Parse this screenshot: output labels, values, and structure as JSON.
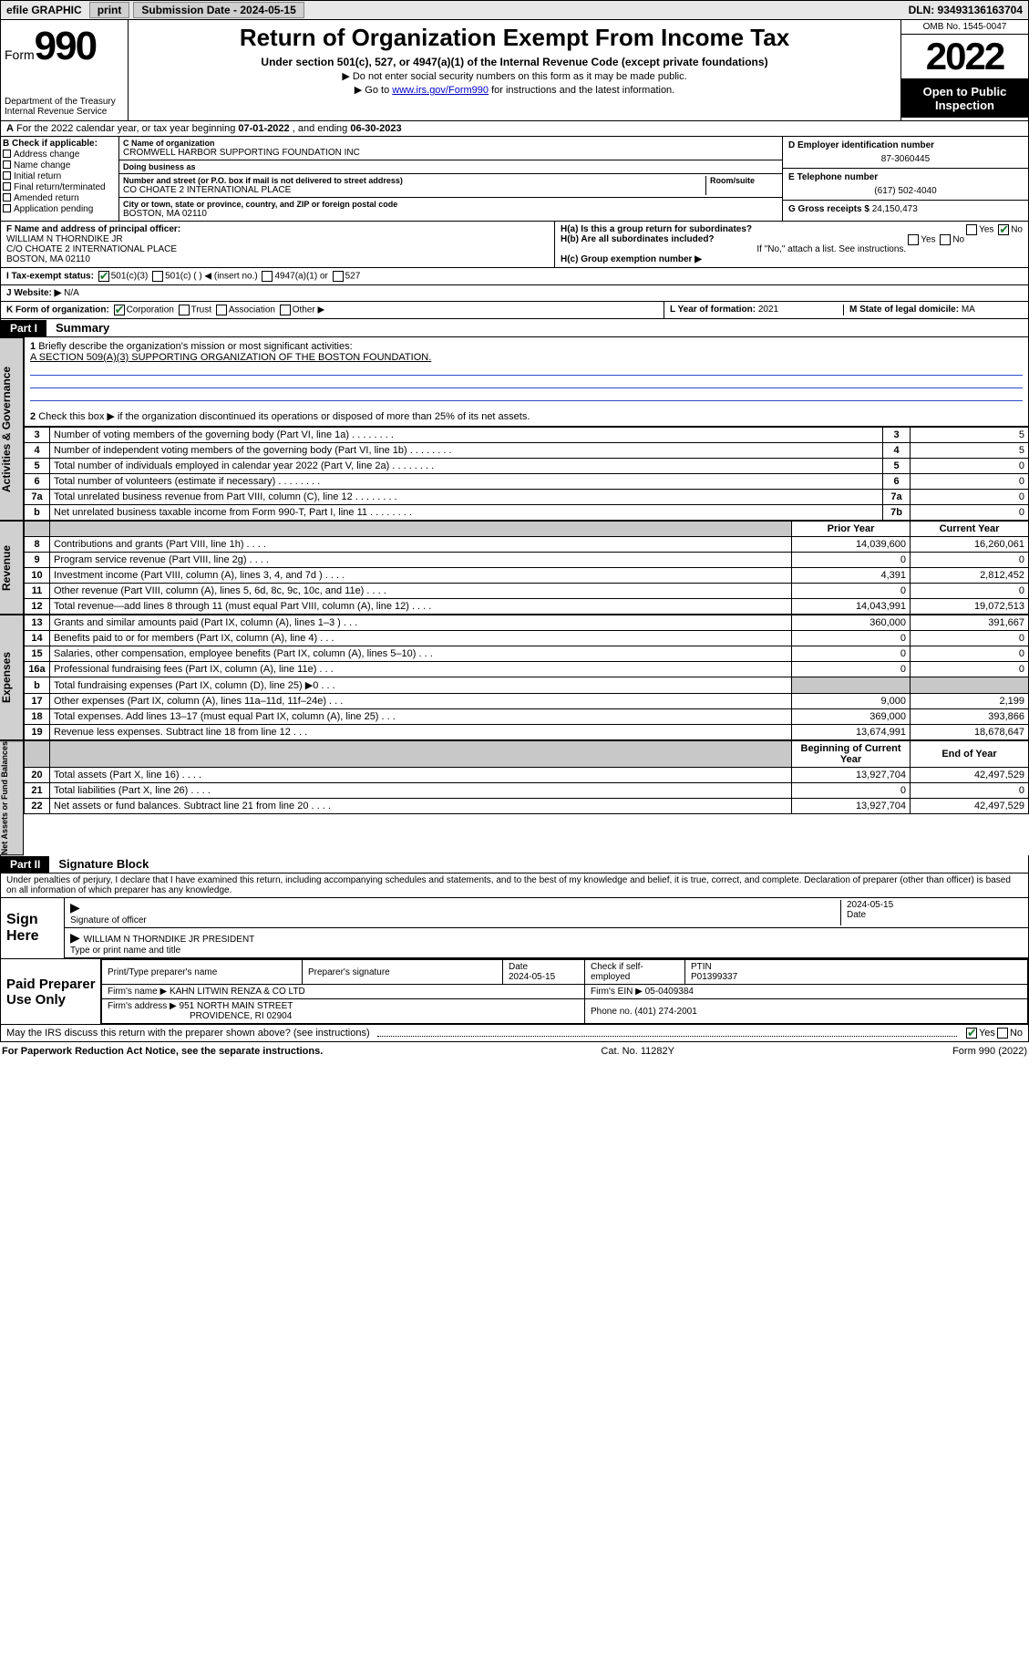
{
  "topbar": {
    "efile": "efile GRAPHIC",
    "print": "print",
    "sub_label": "Submission Date - 2024-05-15",
    "dln_label": "DLN: 93493136163704"
  },
  "header": {
    "form_word": "Form",
    "form_num": "990",
    "dept": "Department of the Treasury",
    "irs": "Internal Revenue Service",
    "title": "Return of Organization Exempt From Income Tax",
    "subtitle": "Under section 501(c), 527, or 4947(a)(1) of the Internal Revenue Code (except private foundations)",
    "note1": "Do not enter social security numbers on this form as it may be made public.",
    "note2_pre": "Go to ",
    "note2_link": "www.irs.gov/Form990",
    "note2_post": " for instructions and the latest information.",
    "omb": "OMB No. 1545-0047",
    "year": "2022",
    "open": "Open to Public Inspection"
  },
  "lineA": {
    "label": "A",
    "text_pre": "For the 2022 calendar year, or tax year beginning ",
    "begin": "07-01-2022",
    "mid": " , and ending ",
    "end": "06-30-2023"
  },
  "boxB": {
    "header": "B Check if applicable:",
    "items": [
      "Address change",
      "Name change",
      "Initial return",
      "Final return/terminated",
      "Amended return",
      "Application pending"
    ]
  },
  "boxC": {
    "name_label": "C Name of organization",
    "name": "CROMWELL HARBOR SUPPORTING FOUNDATION INC",
    "dba_label": "Doing business as",
    "dba": "",
    "street_label": "Number and street (or P.O. box if mail is not delivered to street address)",
    "room_label": "Room/suite",
    "street": "CO CHOATE 2 INTERNATIONAL PLACE",
    "city_label": "City or town, state or province, country, and ZIP or foreign postal code",
    "city": "BOSTON, MA  02110"
  },
  "boxD": {
    "label": "D Employer identification number",
    "value": "87-3060445"
  },
  "boxE": {
    "label": "E Telephone number",
    "value": "(617) 502-4040"
  },
  "boxG": {
    "label": "G Gross receipts $",
    "value": "24,150,473"
  },
  "boxF": {
    "label": "F Name and address of principal officer:",
    "name": "WILLIAM N THORNDIKE JR",
    "addr1": "C/O CHOATE 2 INTERNATIONAL PLACE",
    "addr2": "BOSTON, MA  02110"
  },
  "boxH": {
    "a_label": "H(a)  Is this a group return for subordinates?",
    "b_label": "H(b)  Are all subordinates included?",
    "note": "If \"No,\" attach a list. See instructions.",
    "c_label": "H(c)  Group exemption number ▶"
  },
  "boxI": {
    "label": "I  Tax-exempt status:",
    "opts": [
      "501(c)(3)",
      "501(c) (   ) ◀ (insert no.)",
      "4947(a)(1) or",
      "527"
    ]
  },
  "boxJ": {
    "label": "J  Website: ▶",
    "value": "N/A"
  },
  "boxK": {
    "label": "K Form of organization:",
    "opts": [
      "Corporation",
      "Trust",
      "Association",
      "Other ▶"
    ]
  },
  "boxL": {
    "label": "L Year of formation:",
    "value": "2021"
  },
  "boxM": {
    "label": "M State of legal domicile:",
    "value": "MA"
  },
  "part1": {
    "bar": "Part I",
    "title": "Summary",
    "q1_label": "1",
    "q1_text": "Briefly describe the organization's mission or most significant activities:",
    "q1_mission": "A SECTION 509(A)(3) SUPPORTING ORGANIZATION OF THE BOSTON FOUNDATION.",
    "q2_label": "2",
    "q2_text": "Check this box ▶     if the organization discontinued its operations or disposed of more than 25% of its net assets."
  },
  "gov_rows": [
    {
      "n": "3",
      "label": "Number of voting members of the governing body (Part VI, line 1a)",
      "box": "3",
      "val": "5"
    },
    {
      "n": "4",
      "label": "Number of independent voting members of the governing body (Part VI, line 1b)",
      "box": "4",
      "val": "5"
    },
    {
      "n": "5",
      "label": "Total number of individuals employed in calendar year 2022 (Part V, line 2a)",
      "box": "5",
      "val": "0"
    },
    {
      "n": "6",
      "label": "Total number of volunteers (estimate if necessary)",
      "box": "6",
      "val": "0"
    },
    {
      "n": "7a",
      "label": "Total unrelated business revenue from Part VIII, column (C), line 12",
      "box": "7a",
      "val": "0"
    },
    {
      "n": "b",
      "label": "Net unrelated business taxable income from Form 990-T, Part I, line 11",
      "box": "7b",
      "val": "0"
    }
  ],
  "col_headers": {
    "prior": "Prior Year",
    "current": "Current Year",
    "boy": "Beginning of Current Year",
    "eoy": "End of Year"
  },
  "revenue_rows": [
    {
      "n": "8",
      "label": "Contributions and grants (Part VIII, line 1h)",
      "prior": "14,039,600",
      "cur": "16,260,061"
    },
    {
      "n": "9",
      "label": "Program service revenue (Part VIII, line 2g)",
      "prior": "0",
      "cur": "0"
    },
    {
      "n": "10",
      "label": "Investment income (Part VIII, column (A), lines 3, 4, and 7d )",
      "prior": "4,391",
      "cur": "2,812,452"
    },
    {
      "n": "11",
      "label": "Other revenue (Part VIII, column (A), lines 5, 6d, 8c, 9c, 10c, and 11e)",
      "prior": "0",
      "cur": "0"
    },
    {
      "n": "12",
      "label": "Total revenue—add lines 8 through 11 (must equal Part VIII, column (A), line 12)",
      "prior": "14,043,991",
      "cur": "19,072,513"
    }
  ],
  "expense_rows": [
    {
      "n": "13",
      "label": "Grants and similar amounts paid (Part IX, column (A), lines 1–3 )",
      "prior": "360,000",
      "cur": "391,667"
    },
    {
      "n": "14",
      "label": "Benefits paid to or for members (Part IX, column (A), line 4)",
      "prior": "0",
      "cur": "0"
    },
    {
      "n": "15",
      "label": "Salaries, other compensation, employee benefits (Part IX, column (A), lines 5–10)",
      "prior": "0",
      "cur": "0"
    },
    {
      "n": "16a",
      "label": "Professional fundraising fees (Part IX, column (A), line 11e)",
      "prior": "0",
      "cur": "0"
    },
    {
      "n": "b",
      "label": "Total fundraising expenses (Part IX, column (D), line 25) ▶0",
      "prior": "",
      "cur": "",
      "grey": true
    },
    {
      "n": "17",
      "label": "Other expenses (Part IX, column (A), lines 11a–11d, 11f–24e)",
      "prior": "9,000",
      "cur": "2,199"
    },
    {
      "n": "18",
      "label": "Total expenses. Add lines 13–17 (must equal Part IX, column (A), line 25)",
      "prior": "369,000",
      "cur": "393,866"
    },
    {
      "n": "19",
      "label": "Revenue less expenses. Subtract line 18 from line 12",
      "prior": "13,674,991",
      "cur": "18,678,647"
    }
  ],
  "net_rows": [
    {
      "n": "20",
      "label": "Total assets (Part X, line 16)",
      "prior": "13,927,704",
      "cur": "42,497,529"
    },
    {
      "n": "21",
      "label": "Total liabilities (Part X, line 26)",
      "prior": "0",
      "cur": "0"
    },
    {
      "n": "22",
      "label": "Net assets or fund balances. Subtract line 21 from line 20",
      "prior": "13,927,704",
      "cur": "42,497,529"
    }
  ],
  "side_labels": {
    "gov": "Activities & Governance",
    "rev": "Revenue",
    "exp": "Expenses",
    "net": "Net Assets or Fund Balances"
  },
  "part2": {
    "bar": "Part II",
    "title": "Signature Block",
    "penalty": "Under penalties of perjury, I declare that I have examined this return, including accompanying schedules and statements, and to the best of my knowledge and belief, it is true, correct, and complete. Declaration of preparer (other than officer) is based on all information of which preparer has any knowledge."
  },
  "sign": {
    "side": "Sign Here",
    "sig_label": "Signature of officer",
    "date_label": "Date",
    "date": "2024-05-15",
    "name": "WILLIAM N THORNDIKE JR  PRESIDENT",
    "name_label": "Type or print name and title"
  },
  "paid": {
    "side": "Paid Preparer Use Only",
    "h1": "Print/Type preparer's name",
    "h2": "Preparer's signature",
    "h3": "Date",
    "h3v": "2024-05-15",
    "h4": "Check     if self-employed",
    "h5": "PTIN",
    "h5v": "P01399337",
    "firm_label": "Firm's name    ▶",
    "firm": "KAHN LITWIN RENZA & CO LTD",
    "ein_label": "Firm's EIN ▶",
    "ein": "05-0409384",
    "addr_label": "Firm's address ▶",
    "addr1": "951 NORTH MAIN STREET",
    "addr2": "PROVIDENCE, RI  02904",
    "phone_label": "Phone no.",
    "phone": "(401) 274-2001"
  },
  "discuss": {
    "text": "May the IRS discuss this return with the preparer shown above? (see instructions)",
    "yes": "Yes",
    "no": "No"
  },
  "footer": {
    "left": "For Paperwork Reduction Act Notice, see the separate instructions.",
    "mid": "Cat. No. 11282Y",
    "right": "Form 990 (2022)"
  },
  "colors": {
    "link": "#0000cc",
    "check_green": "#1a7a2e",
    "grey_cell": "#c8c8c8",
    "sidebar_grey": "#d0d0d0",
    "mission_line": "#2a4bcc"
  }
}
